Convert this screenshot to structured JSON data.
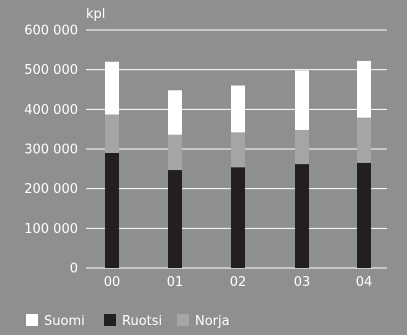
{
  "chart_data": {
    "type": "bar",
    "stacked": true,
    "unit_label": "kpl",
    "categories": [
      "00",
      "01",
      "02",
      "03",
      "04"
    ],
    "series": [
      {
        "name": "Ruotsi",
        "color": "#231f20",
        "values": [
          290000,
          247000,
          254000,
          262000,
          265000
        ]
      },
      {
        "name": "Norja",
        "color": "#a4a5a6",
        "values": [
          97000,
          89000,
          88000,
          86000,
          114000
        ]
      },
      {
        "name": "Suomi",
        "color": "#ffffff",
        "values": [
          133000,
          112000,
          118000,
          150000,
          143000
        ]
      }
    ],
    "ylim": [
      0,
      600000
    ],
    "yticks": [
      0,
      100000,
      200000,
      300000,
      400000,
      500000,
      600000
    ],
    "ytick_labels": [
      "0",
      "100 000",
      "200 000",
      "300 000",
      "400 000",
      "500 000",
      "600 000"
    ],
    "grid": true,
    "legend": {
      "position": "bottom-left",
      "items": [
        {
          "label": "Suomi",
          "color": "#ffffff"
        },
        {
          "label": "Ruotsi",
          "color": "#231f20"
        },
        {
          "label": "Norja",
          "color": "#a4a5a6"
        }
      ]
    },
    "background": "#8e8f90",
    "grid_color": "#ffffff"
  }
}
